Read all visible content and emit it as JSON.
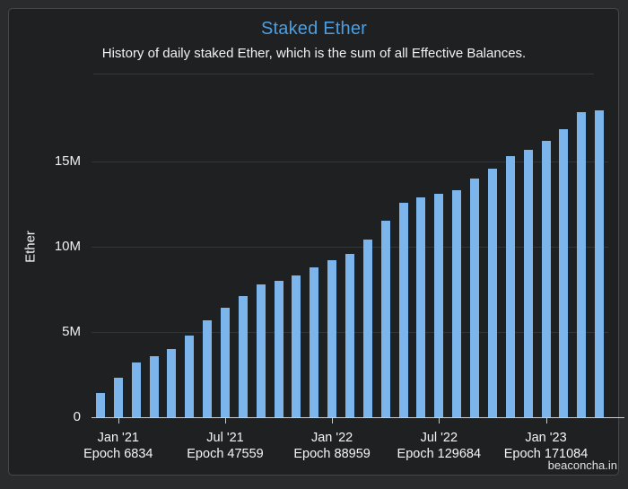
{
  "card": {
    "title": "Staked Ether",
    "subtitle": "History of daily staked Ether, which is the sum of all Effective Balances.",
    "watermark": "beaconcha.in"
  },
  "colors": {
    "title": "#4d9ee0",
    "bar": "#7cb5ec",
    "axis": "#cccccc",
    "grid": "#323638",
    "text": "#f2f2f2"
  },
  "chart_data": {
    "type": "bar",
    "title": "Staked Ether",
    "subtitle": "History of daily staked Ether, which is the sum of all Effective Balances.",
    "ylabel": "Ether",
    "ylim_millions": [
      0,
      18.2
    ],
    "grid": "horizontal",
    "legend": "none",
    "values_millions": [
      1.4,
      2.3,
      3.2,
      3.6,
      4.0,
      4.8,
      5.7,
      6.4,
      7.1,
      7.8,
      8.0,
      8.3,
      8.8,
      9.2,
      9.6,
      10.4,
      11.5,
      12.6,
      12.9,
      13.1,
      13.3,
      14.0,
      14.6,
      15.3,
      15.7,
      16.2,
      16.9,
      17.9,
      18.0
    ],
    "yticks": [
      {
        "value": 0,
        "label": "0"
      },
      {
        "value": 5,
        "label": "5M"
      },
      {
        "value": 10,
        "label": "10M"
      },
      {
        "value": 15,
        "label": "15M"
      }
    ],
    "xticks": [
      {
        "bar_index": 1,
        "date": "Jan '21",
        "epoch": "Epoch 6834"
      },
      {
        "bar_index": 7,
        "date": "Jul '21",
        "epoch": "Epoch 47559"
      },
      {
        "bar_index": 13,
        "date": "Jan '22",
        "epoch": "Epoch 88959"
      },
      {
        "bar_index": 19,
        "date": "Jul '22",
        "epoch": "Epoch 129684"
      },
      {
        "bar_index": 25,
        "date": "Jan '23",
        "epoch": "Epoch 171084"
      }
    ]
  }
}
